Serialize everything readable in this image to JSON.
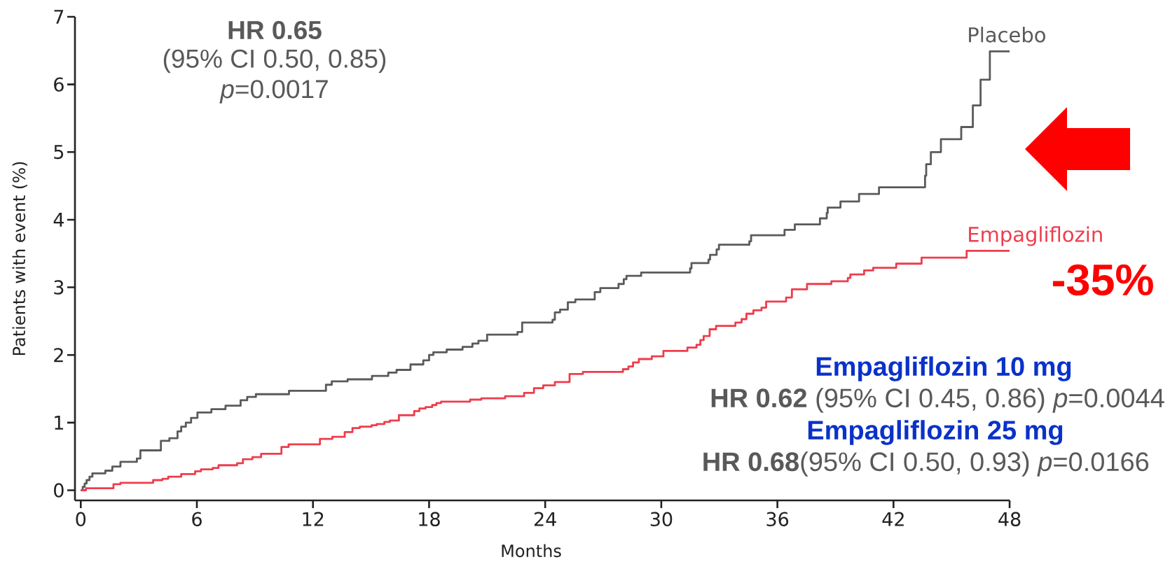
{
  "chart_data": {
    "type": "step",
    "xlabel": "Months",
    "ylabel": "Patients with event (%)",
    "xlim": [
      -0.3,
      48
    ],
    "ylim": [
      -0.15,
      7
    ],
    "xticks": [
      0,
      6,
      12,
      18,
      24,
      30,
      36,
      42,
      48
    ],
    "yticks": [
      0,
      1,
      2,
      3,
      4,
      5,
      6,
      7
    ],
    "series": [
      {
        "name": "Placebo",
        "color": "#5a5a5a",
        "x": [
          0,
          0.1,
          0.2,
          0.3,
          0.45,
          0.6,
          1.27,
          1.63,
          2.05,
          2.9,
          3.08,
          4.14,
          4.58,
          5.0,
          5.19,
          5.43,
          5.7,
          6.03,
          6.75,
          7.48,
          8.26,
          8.6,
          9.05,
          10.76,
          12.67,
          12.97,
          13.79,
          15.05,
          15.89,
          16.32,
          17.04,
          17.7,
          18.0,
          18.22,
          18.91,
          19.73,
          20.24,
          20.55,
          21.0,
          22.57,
          22.81,
          24.38,
          24.5,
          24.77,
          25.17,
          25.56,
          26.56,
          26.85,
          27.79,
          28.06,
          28.2,
          28.96,
          31.49,
          31.56,
          32.44,
          32.52,
          32.86,
          32.98,
          34.55,
          34.64,
          36.37,
          36.9,
          38.2,
          38.55,
          38.6,
          39.26,
          40.22,
          41.25,
          43.63,
          43.69,
          43.93,
          44.45,
          45.5,
          46.1,
          46.5,
          46.98,
          48
        ],
        "values": [
          0,
          0.05,
          0.1,
          0.15,
          0.2,
          0.25,
          0.29,
          0.35,
          0.42,
          0.47,
          0.59,
          0.73,
          0.77,
          0.87,
          0.94,
          1.0,
          1.07,
          1.15,
          1.2,
          1.25,
          1.33,
          1.38,
          1.42,
          1.47,
          1.56,
          1.61,
          1.64,
          1.69,
          1.74,
          1.78,
          1.86,
          1.92,
          2.0,
          2.04,
          2.08,
          2.12,
          2.17,
          2.21,
          2.3,
          2.34,
          2.48,
          2.52,
          2.63,
          2.67,
          2.78,
          2.82,
          2.93,
          2.99,
          3.05,
          3.12,
          3.17,
          3.22,
          3.28,
          3.36,
          3.41,
          3.48,
          3.56,
          3.63,
          3.68,
          3.77,
          3.85,
          3.93,
          4.02,
          4.1,
          4.18,
          4.27,
          4.38,
          4.48,
          4.65,
          4.82,
          5.0,
          5.19,
          5.37,
          5.69,
          6.07,
          6.49,
          6.49
        ]
      },
      {
        "name": "Empagliflozin",
        "color": "#ee3d4c",
        "x": [
          0,
          0.27,
          1.69,
          2.05,
          3.74,
          4.22,
          4.52,
          5.19,
          5.91,
          6.21,
          6.82,
          7.12,
          8.08,
          8.38,
          8.87,
          9.32,
          10.37,
          10.74,
          12.36,
          13.0,
          13.64,
          14.04,
          14.42,
          15.03,
          15.29,
          15.69,
          15.97,
          16.44,
          17.23,
          17.5,
          17.82,
          18.16,
          18.38,
          18.62,
          20.12,
          20.7,
          21.93,
          22.91,
          23.42,
          23.9,
          24.5,
          25.26,
          25.95,
          28.02,
          28.3,
          28.54,
          28.84,
          29.51,
          30.11,
          31.35,
          31.82,
          32.02,
          32.19,
          32.5,
          32.83,
          33.83,
          34.15,
          34.4,
          34.76,
          35.18,
          35.42,
          36.45,
          36.75,
          37.53,
          38.79,
          39.64,
          39.77,
          40.48,
          40.95,
          42.14,
          43.45,
          45.78,
          48
        ],
        "values": [
          0,
          0.03,
          0.09,
          0.11,
          0.15,
          0.17,
          0.2,
          0.24,
          0.28,
          0.31,
          0.33,
          0.37,
          0.4,
          0.46,
          0.49,
          0.54,
          0.64,
          0.68,
          0.76,
          0.79,
          0.86,
          0.92,
          0.94,
          0.96,
          0.98,
          1.01,
          1.03,
          1.11,
          1.17,
          1.21,
          1.23,
          1.26,
          1.29,
          1.31,
          1.34,
          1.36,
          1.39,
          1.44,
          1.51,
          1.55,
          1.6,
          1.72,
          1.75,
          1.79,
          1.83,
          1.89,
          1.94,
          1.98,
          2.06,
          2.11,
          2.15,
          2.22,
          2.28,
          2.38,
          2.43,
          2.48,
          2.53,
          2.61,
          2.66,
          2.7,
          2.79,
          2.85,
          2.97,
          3.05,
          3.09,
          3.14,
          3.19,
          3.25,
          3.29,
          3.35,
          3.44,
          3.54,
          3.54
        ]
      }
    ],
    "annotations": [
      "HR 0.65",
      "(95% CI 0.50, 0.85)",
      "*p*=0.0017",
      "Empagliflozin 10 mg",
      "**HR 0.62** (95% CI 0.45, 0.86) *p*=0.0044",
      "Empagliflozin 25 mg",
      "**HR 0.68**(95% CI 0.50, 0.93) *p*=0.0166",
      "-35%"
    ]
  }
}
